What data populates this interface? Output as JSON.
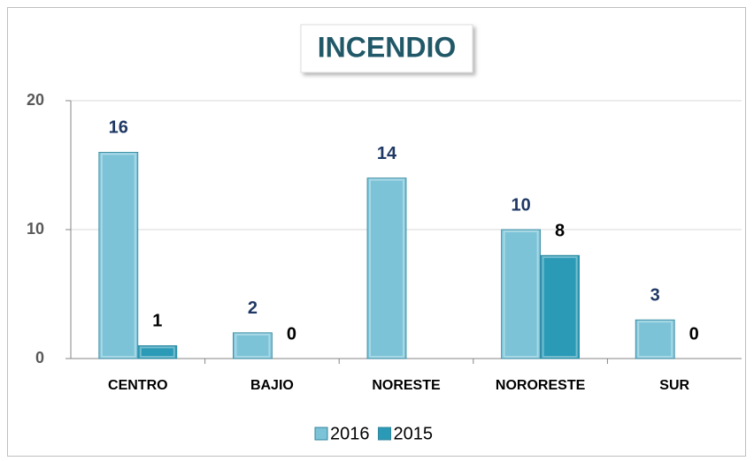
{
  "chart_data": {
    "type": "bar",
    "title": "INCENDIO",
    "categories": [
      "CENTRO",
      "BAJIO",
      "NORESTE",
      "NORORESTE",
      "SUR"
    ],
    "series": [
      {
        "name": "2016",
        "color": "#7cc3d8",
        "label_color": "#1f3864",
        "values": [
          16,
          2,
          14,
          10,
          3
        ]
      },
      {
        "name": "2015",
        "color": "#2a9ab6",
        "label_color": "#000000",
        "values": [
          1,
          0,
          null,
          8,
          0
        ]
      }
    ],
    "ylim": [
      0,
      20
    ],
    "yticks": [
      0,
      10,
      20
    ],
    "grid": true,
    "legend": "bottom"
  }
}
